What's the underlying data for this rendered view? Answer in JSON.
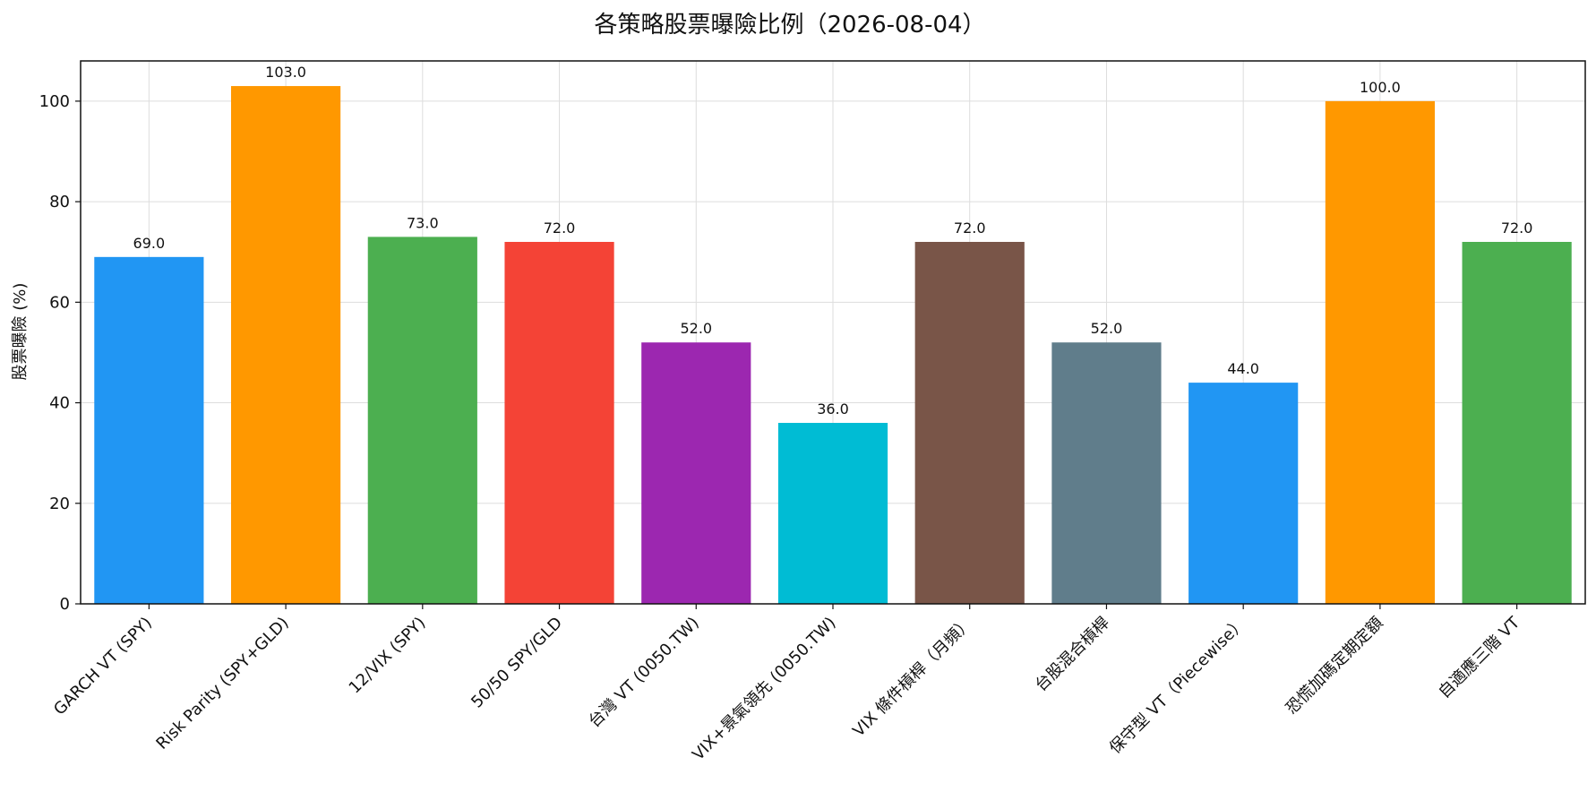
{
  "chart_data": {
    "type": "bar",
    "title": "各策略股票曝險比例（2026-08-04）",
    "xlabel": "",
    "ylabel": "股票曝險 (%)",
    "ylim": [
      0,
      108
    ],
    "yticks": [
      0,
      20,
      40,
      60,
      80,
      100
    ],
    "grid": true,
    "categories": [
      "GARCH VT (SPY)",
      "Risk Parity (SPY+GLD)",
      "12/VIX (SPY)",
      "50/50 SPY/GLD",
      "台灣 VT (0050.TW)",
      "VIX+景氣領先 (0050.TW)",
      "VIX 條件槓桿（月頻）",
      "台股混合槓桿",
      "保守型 VT（Piecewise）",
      "恐慌加碼定期定額",
      "自適應三階 VT"
    ],
    "values": [
      69.0,
      103.0,
      73.0,
      72.0,
      52.0,
      36.0,
      72.0,
      52.0,
      44.0,
      100.0,
      72.0
    ],
    "value_labels": [
      "69.0",
      "103.0",
      "73.0",
      "72.0",
      "52.0",
      "36.0",
      "72.0",
      "52.0",
      "44.0",
      "100.0",
      "72.0"
    ],
    "colors": [
      "#2196F3",
      "#FF9800",
      "#4CAF50",
      "#F44336",
      "#9C27B0",
      "#00BCD4",
      "#795548",
      "#607D8B",
      "#2196F3",
      "#FF9800",
      "#4CAF50"
    ]
  }
}
